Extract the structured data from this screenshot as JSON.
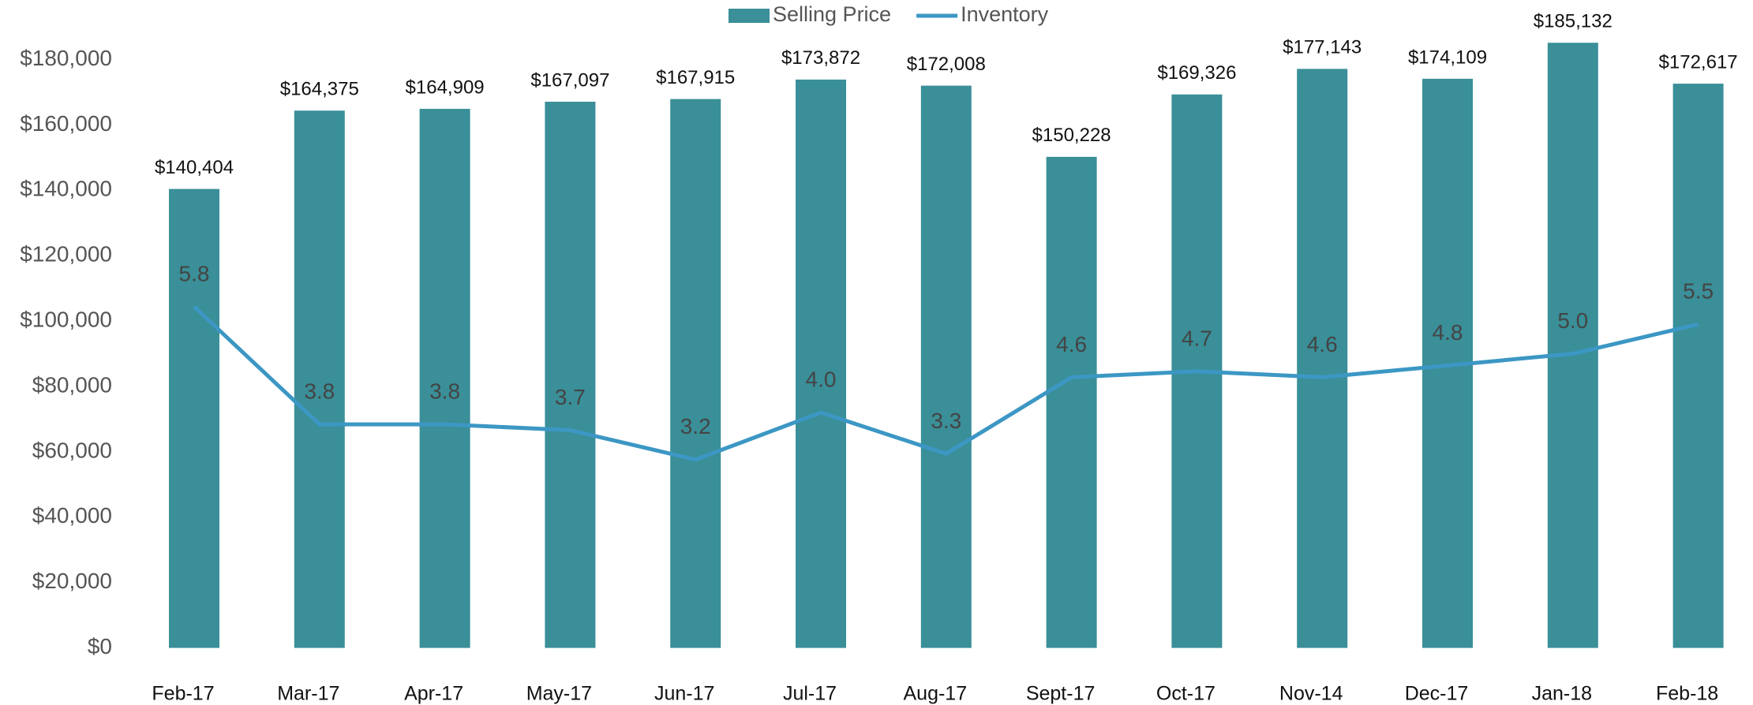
{
  "chart_data": {
    "type": "bar",
    "categories": [
      "Feb-17",
      "Mar-17",
      "Apr-17",
      "May-17",
      "Jun-17",
      "Jul-17",
      "Aug-17",
      "Sept-17",
      "Oct-17",
      "Nov-14",
      "Dec-17",
      "Jan-18",
      "Feb-18",
      null
    ],
    "series": [
      {
        "name": "Selling Price",
        "type": "bar",
        "color": "#3a8f98",
        "values": [
          140404,
          164375,
          164909,
          167097,
          167915,
          173872,
          172008,
          150228,
          169326,
          177143,
          174109,
          185132,
          172617,
          null
        ],
        "value_labels": [
          "$140,404",
          "$164,375",
          "$164,909",
          "$167,097",
          "$167,915",
          "$173,872",
          "$172,008",
          "$150,228",
          "$169,326",
          "$177,143",
          "$174,109",
          "$185,132",
          "$172,617",
          null
        ]
      },
      {
        "name": "Inventory",
        "type": "line",
        "axis": "y2",
        "color": "#3c97c4",
        "values": [
          5.8,
          3.8,
          3.8,
          3.7,
          3.2,
          4.0,
          3.3,
          4.6,
          4.7,
          4.6,
          4.8,
          5.0,
          5.5,
          null
        ],
        "value_labels": [
          "5.8",
          "3.8",
          "3.8",
          "3.7",
          "3.2",
          "4.0",
          "3.3",
          "4.6",
          "4.7",
          "4.6",
          "4.8",
          "5.0",
          "5.5",
          null
        ]
      }
    ],
    "ylim": [
      0,
      180000
    ],
    "yticks": [
      {
        "value": 0,
        "label": "$0"
      },
      {
        "value": 20000,
        "label": "$20,000"
      },
      {
        "value": 40000,
        "label": "$40,000"
      },
      {
        "value": 60000,
        "label": "$60,000"
      },
      {
        "value": 80000,
        "label": "$80,000"
      },
      {
        "value": 100000,
        "label": "$100,000"
      },
      {
        "value": 120000,
        "label": "$120,000"
      },
      {
        "value": 140000,
        "label": "$140,000"
      },
      {
        "value": 160000,
        "label": "$160,000"
      },
      {
        "value": 180000,
        "label": "$180,000"
      }
    ],
    "y2lim": [
      0,
      10
    ],
    "legend": "top"
  }
}
